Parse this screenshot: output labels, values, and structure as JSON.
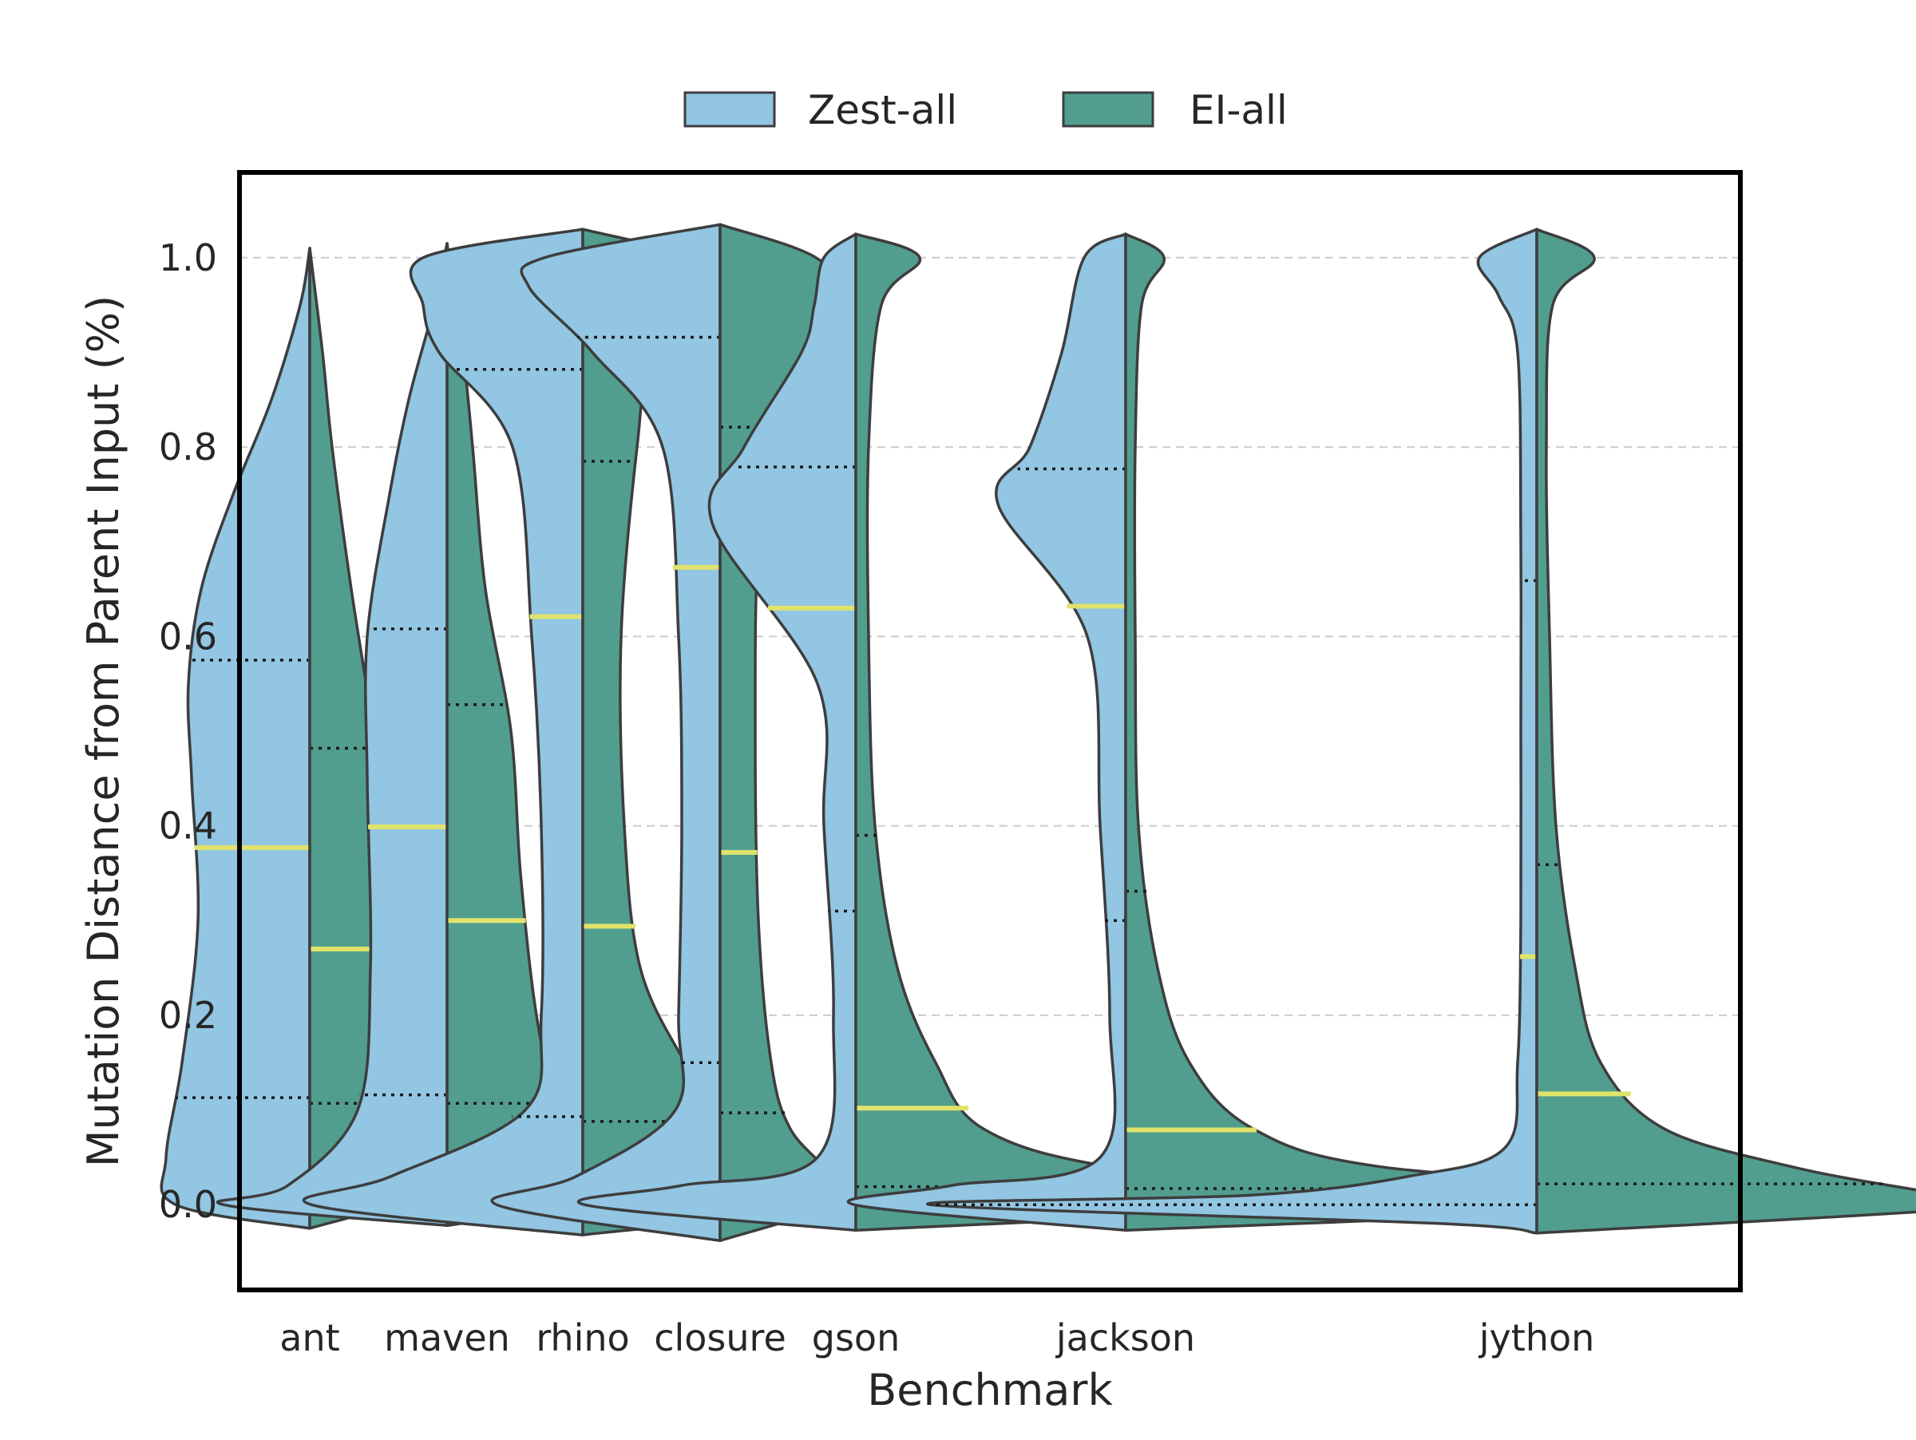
{
  "chart_data": {
    "type": "violin",
    "xlabel": "Benchmark",
    "ylabel": "Mutation Distance from Parent Input (%)",
    "ylim": [
      -0.09,
      1.09
    ],
    "yticks": [
      "0.0",
      "0.2",
      "0.4",
      "0.6",
      "0.8",
      "1.0"
    ],
    "ytick_values": [
      0.0,
      0.2,
      0.4,
      0.6,
      0.8,
      1.0
    ],
    "grid": "y-dashed",
    "legend_position": "top-center",
    "colors": {
      "zest": "#92c6e2",
      "ei": "#519e8f",
      "outline": "#3d3d3d",
      "median": "#e0e36b",
      "quartile": "#1a1a1a",
      "grid": "#cccccc"
    },
    "series": [
      {
        "name": "Zest-all",
        "key": "zest"
      },
      {
        "name": "EI-all",
        "key": "ei"
      }
    ],
    "categories": [
      "ant",
      "maven",
      "rhino",
      "closure",
      "gson",
      "jackson",
      "jython"
    ],
    "violins": [
      {
        "benchmark": "ant",
        "zest": {
          "median": 0.377,
          "q1": 0.113,
          "q3": 0.575,
          "min": -0.025,
          "max": 1.01,
          "profile": [
            [
              -0.025,
              0
            ],
            [
              0.0,
              0.042
            ],
            [
              0.05,
              0.045
            ],
            [
              0.15,
              0.04
            ],
            [
              0.3,
              0.035
            ],
            [
              0.45,
              0.037
            ],
            [
              0.55,
              0.038
            ],
            [
              0.65,
              0.034
            ],
            [
              0.75,
              0.024
            ],
            [
              0.85,
              0.012
            ],
            [
              0.95,
              0.003
            ],
            [
              1.01,
              0
            ]
          ]
        },
        "ei": {
          "median": 0.27,
          "q1": 0.107,
          "q3": 0.482,
          "min": -0.025,
          "max": 1.01,
          "profile": [
            [
              -0.025,
              0
            ],
            [
              0.005,
              0.03
            ],
            [
              0.04,
              0.045
            ],
            [
              0.1,
              0.04
            ],
            [
              0.2,
              0.033
            ],
            [
              0.35,
              0.026
            ],
            [
              0.5,
              0.02
            ],
            [
              0.65,
              0.013
            ],
            [
              0.8,
              0.007
            ],
            [
              0.9,
              0.004
            ],
            [
              1.01,
              0
            ]
          ]
        }
      },
      {
        "benchmark": "maven",
        "zest": {
          "median": 0.399,
          "q1": 0.116,
          "q3": 0.608,
          "min": -0.022,
          "max": 1.015,
          "profile": [
            [
              -0.022,
              0
            ],
            [
              0.0,
              0.07
            ],
            [
              0.02,
              0.05
            ],
            [
              0.1,
              0.028
            ],
            [
              0.25,
              0.024
            ],
            [
              0.45,
              0.025
            ],
            [
              0.6,
              0.025
            ],
            [
              0.75,
              0.018
            ],
            [
              0.85,
              0.012
            ],
            [
              0.95,
              0.004
            ],
            [
              1.015,
              0
            ]
          ]
        },
        "ei": {
          "median": 0.3,
          "q1": 0.107,
          "q3": 0.528,
          "min": -0.022,
          "max": 1.015,
          "profile": [
            [
              -0.022,
              0
            ],
            [
              0.005,
              0.05
            ],
            [
              0.03,
              0.048
            ],
            [
              0.1,
              0.035
            ],
            [
              0.2,
              0.028
            ],
            [
              0.35,
              0.023
            ],
            [
              0.5,
              0.02
            ],
            [
              0.65,
              0.012
            ],
            [
              0.8,
              0.008
            ],
            [
              0.9,
              0.005
            ],
            [
              1.015,
              0
            ]
          ]
        }
      },
      {
        "benchmark": "rhino",
        "zest": {
          "median": 0.621,
          "q1": 0.093,
          "q3": 0.882,
          "min": -0.032,
          "max": 1.03,
          "profile": [
            [
              -0.032,
              0
            ],
            [
              0.0,
              0.085
            ],
            [
              0.03,
              0.06
            ],
            [
              0.1,
              0.018
            ],
            [
              0.2,
              0.013
            ],
            [
              0.4,
              0.013
            ],
            [
              0.6,
              0.016
            ],
            [
              0.8,
              0.022
            ],
            [
              0.9,
              0.045
            ],
            [
              0.95,
              0.05
            ],
            [
              1.0,
              0.05
            ],
            [
              1.03,
              0
            ]
          ]
        },
        "ei": {
          "median": 0.294,
          "q1": 0.088,
          "q3": 0.785,
          "min": -0.032,
          "max": 1.03,
          "profile": [
            [
              -0.032,
              0
            ],
            [
              0.0,
              0.07
            ],
            [
              0.05,
              0.045
            ],
            [
              0.1,
              0.042
            ],
            [
              0.15,
              0.032
            ],
            [
              0.25,
              0.018
            ],
            [
              0.4,
              0.013
            ],
            [
              0.6,
              0.012
            ],
            [
              0.8,
              0.017
            ],
            [
              0.9,
              0.022
            ],
            [
              0.97,
              0.04
            ],
            [
              1.0,
              0.035
            ],
            [
              1.03,
              0
            ]
          ]
        }
      },
      {
        "benchmark": "closure",
        "zest": {
          "median": 0.673,
          "q1": 0.15,
          "q3": 0.916,
          "min": -0.038,
          "max": 1.035,
          "profile": [
            [
              -0.038,
              0
            ],
            [
              0.0,
              0.07
            ],
            [
              0.03,
              0.045
            ],
            [
              0.1,
              0.014
            ],
            [
              0.2,
              0.013
            ],
            [
              0.4,
              0.012
            ],
            [
              0.6,
              0.013
            ],
            [
              0.8,
              0.018
            ],
            [
              0.9,
              0.04
            ],
            [
              0.97,
              0.06
            ],
            [
              1.0,
              0.055
            ],
            [
              1.035,
              0
            ]
          ]
        },
        "ei": {
          "median": 0.372,
          "q1": 0.097,
          "q3": 0.821,
          "min": -0.038,
          "max": 1.035,
          "profile": [
            [
              -0.038,
              0
            ],
            [
              0.0,
              0.035
            ],
            [
              0.03,
              0.035
            ],
            [
              0.08,
              0.022
            ],
            [
              0.15,
              0.016
            ],
            [
              0.3,
              0.012
            ],
            [
              0.5,
              0.011
            ],
            [
              0.7,
              0.012
            ],
            [
              0.85,
              0.018
            ],
            [
              0.95,
              0.04
            ],
            [
              1.0,
              0.03
            ],
            [
              1.035,
              0
            ]
          ]
        }
      },
      {
        "benchmark": "gson",
        "zest": {
          "median": 0.63,
          "q1": 0.31,
          "q3": 0.779,
          "min": -0.027,
          "max": 1.025,
          "profile": [
            [
              -0.027,
              0
            ],
            [
              0.0,
              0.085
            ],
            [
              0.02,
              0.055
            ],
            [
              0.05,
              0.012
            ],
            [
              0.2,
              0.007
            ],
            [
              0.4,
              0.01
            ],
            [
              0.55,
              0.012
            ],
            [
              0.72,
              0.045
            ],
            [
              0.8,
              0.035
            ],
            [
              0.9,
              0.017
            ],
            [
              0.95,
              0.013
            ],
            [
              1.0,
              0.01
            ],
            [
              1.025,
              0
            ]
          ]
        },
        "ei": {
          "median": 0.102,
          "q1": 0.019,
          "q3": 0.39,
          "min": -0.027,
          "max": 1.025,
          "profile": [
            [
              -0.027,
              0
            ],
            [
              0.0,
              0.16
            ],
            [
              0.015,
              0.16
            ],
            [
              0.04,
              0.08
            ],
            [
              0.08,
              0.04
            ],
            [
              0.15,
              0.025
            ],
            [
              0.25,
              0.013
            ],
            [
              0.4,
              0.006
            ],
            [
              0.6,
              0.004
            ],
            [
              0.8,
              0.004
            ],
            [
              0.95,
              0.008
            ],
            [
              1.0,
              0.02
            ],
            [
              1.025,
              0
            ]
          ]
        }
      },
      {
        "benchmark": "jackson",
        "zest": {
          "median": 0.632,
          "q1": 0.3,
          "q3": 0.777,
          "min": -0.027,
          "max": 1.025,
          "profile": [
            [
              -0.027,
              0
            ],
            [
              0.0,
              0.085
            ],
            [
              0.02,
              0.055
            ],
            [
              0.05,
              0.008
            ],
            [
              0.2,
              0.005
            ],
            [
              0.4,
              0.008
            ],
            [
              0.6,
              0.012
            ],
            [
              0.74,
              0.04
            ],
            [
              0.8,
              0.03
            ],
            [
              0.9,
              0.02
            ],
            [
              1.0,
              0.013
            ],
            [
              1.025,
              0
            ]
          ]
        },
        "ei": {
          "median": 0.079,
          "q1": 0.017,
          "q3": 0.331,
          "min": -0.027,
          "max": 1.025,
          "profile": [
            [
              -0.027,
              0
            ],
            [
              0.0,
              0.19
            ],
            [
              0.015,
              0.18
            ],
            [
              0.04,
              0.08
            ],
            [
              0.08,
              0.04
            ],
            [
              0.15,
              0.02
            ],
            [
              0.25,
              0.01
            ],
            [
              0.4,
              0.004
            ],
            [
              0.6,
              0.003
            ],
            [
              0.8,
              0.003
            ],
            [
              0.95,
              0.005
            ],
            [
              1.0,
              0.012
            ],
            [
              1.025,
              0
            ]
          ]
        }
      },
      {
        "benchmark": "jython",
        "zest": {
          "median": 0.262,
          "q1": 0.0,
          "q3": 0.659,
          "min": -0.03,
          "max": 1.03,
          "profile": [
            [
              -0.03,
              0
            ],
            [
              -0.02,
              0.03
            ],
            [
              0.0,
              0.19
            ],
            [
              0.01,
              0.09
            ],
            [
              0.03,
              0.04
            ],
            [
              0.06,
              0.01
            ],
            [
              0.15,
              0.006
            ],
            [
              0.3,
              0.005
            ],
            [
              0.5,
              0.005
            ],
            [
              0.7,
              0.005
            ],
            [
              0.9,
              0.006
            ],
            [
              0.96,
              0.012
            ],
            [
              1.0,
              0.018
            ],
            [
              1.03,
              0
            ]
          ]
        },
        "ei": {
          "median": 0.117,
          "q1": 0.022,
          "q3": 0.359,
          "min": -0.03,
          "max": 1.03,
          "profile": [
            [
              -0.03,
              0
            ],
            [
              0.0,
              0.15
            ],
            [
              0.015,
              0.12
            ],
            [
              0.04,
              0.08
            ],
            [
              0.08,
              0.04
            ],
            [
              0.15,
              0.02
            ],
            [
              0.25,
              0.012
            ],
            [
              0.4,
              0.006
            ],
            [
              0.6,
              0.004
            ],
            [
              0.8,
              0.003
            ],
            [
              0.95,
              0.005
            ],
            [
              1.0,
              0.018
            ],
            [
              1.03,
              0
            ]
          ]
        }
      }
    ]
  }
}
